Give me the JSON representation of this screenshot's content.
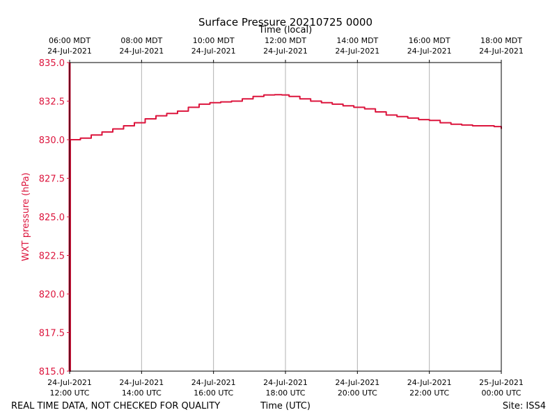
{
  "chart_data": {
    "type": "line",
    "title": "Surface Pressure 20210725 0000",
    "xlabel": "Time (UTC)",
    "xlabel_top": "Time (local)",
    "ylabel": "WXT pressure (hPa)",
    "ylim": [
      815.0,
      835.0
    ],
    "xlim_hours_utc": [
      12,
      24
    ],
    "y_ticks": [
      "835.0",
      "832.5",
      "830.0",
      "827.5",
      "825.0",
      "822.5",
      "820.0",
      "817.5",
      "815.0"
    ],
    "x_ticks_bottom": [
      {
        "l1": "24-Jul-2021",
        "l2": "12:00 UTC"
      },
      {
        "l1": "24-Jul-2021",
        "l2": "14:00 UTC"
      },
      {
        "l1": "24-Jul-2021",
        "l2": "16:00 UTC"
      },
      {
        "l1": "24-Jul-2021",
        "l2": "18:00 UTC"
      },
      {
        "l1": "24-Jul-2021",
        "l2": "20:00 UTC"
      },
      {
        "l1": "24-Jul-2021",
        "l2": "22:00 UTC"
      },
      {
        "l1": "25-Jul-2021",
        "l2": "00:00 UTC"
      }
    ],
    "x_ticks_top": [
      {
        "l1": "06:00 MDT",
        "l2": "24-Jul-2021"
      },
      {
        "l1": "08:00 MDT",
        "l2": "24-Jul-2021"
      },
      {
        "l1": "10:00 MDT",
        "l2": "24-Jul-2021"
      },
      {
        "l1": "12:00 MDT",
        "l2": "24-Jul-2021"
      },
      {
        "l1": "14:00 MDT",
        "l2": "24-Jul-2021"
      },
      {
        "l1": "16:00 MDT",
        "l2": "24-Jul-2021"
      },
      {
        "l1": "18:00 MDT",
        "l2": "24-Jul-2021"
      }
    ],
    "grid": "vertical",
    "series": [
      {
        "name": "WXT pressure",
        "color": "#dc143c",
        "x": [
          12.0,
          12.02,
          12.3,
          12.6,
          12.9,
          13.2,
          13.5,
          13.8,
          14.1,
          14.4,
          14.7,
          15.0,
          15.3,
          15.6,
          15.9,
          16.2,
          16.5,
          16.8,
          17.1,
          17.4,
          17.7,
          17.9,
          18.1,
          18.4,
          18.7,
          19.0,
          19.3,
          19.6,
          19.9,
          20.2,
          20.5,
          20.8,
          21.1,
          21.4,
          21.7,
          22.0,
          22.3,
          22.6,
          22.9,
          23.2,
          23.5,
          23.8,
          24.0
        ],
        "y": [
          815.0,
          830.0,
          830.1,
          830.3,
          830.5,
          830.7,
          830.9,
          831.1,
          831.35,
          831.55,
          831.7,
          831.85,
          832.1,
          832.3,
          832.4,
          832.45,
          832.5,
          832.65,
          832.8,
          832.9,
          832.92,
          832.9,
          832.8,
          832.65,
          832.5,
          832.4,
          832.3,
          832.2,
          832.1,
          832.0,
          831.8,
          831.6,
          831.5,
          831.4,
          831.3,
          831.25,
          831.1,
          831.0,
          830.95,
          830.9,
          830.9,
          830.85,
          830.7
        ]
      }
    ]
  },
  "footer": {
    "left": "REAL TIME DATA, NOT CHECKED FOR QUALITY",
    "right": "Site: ISS4"
  }
}
